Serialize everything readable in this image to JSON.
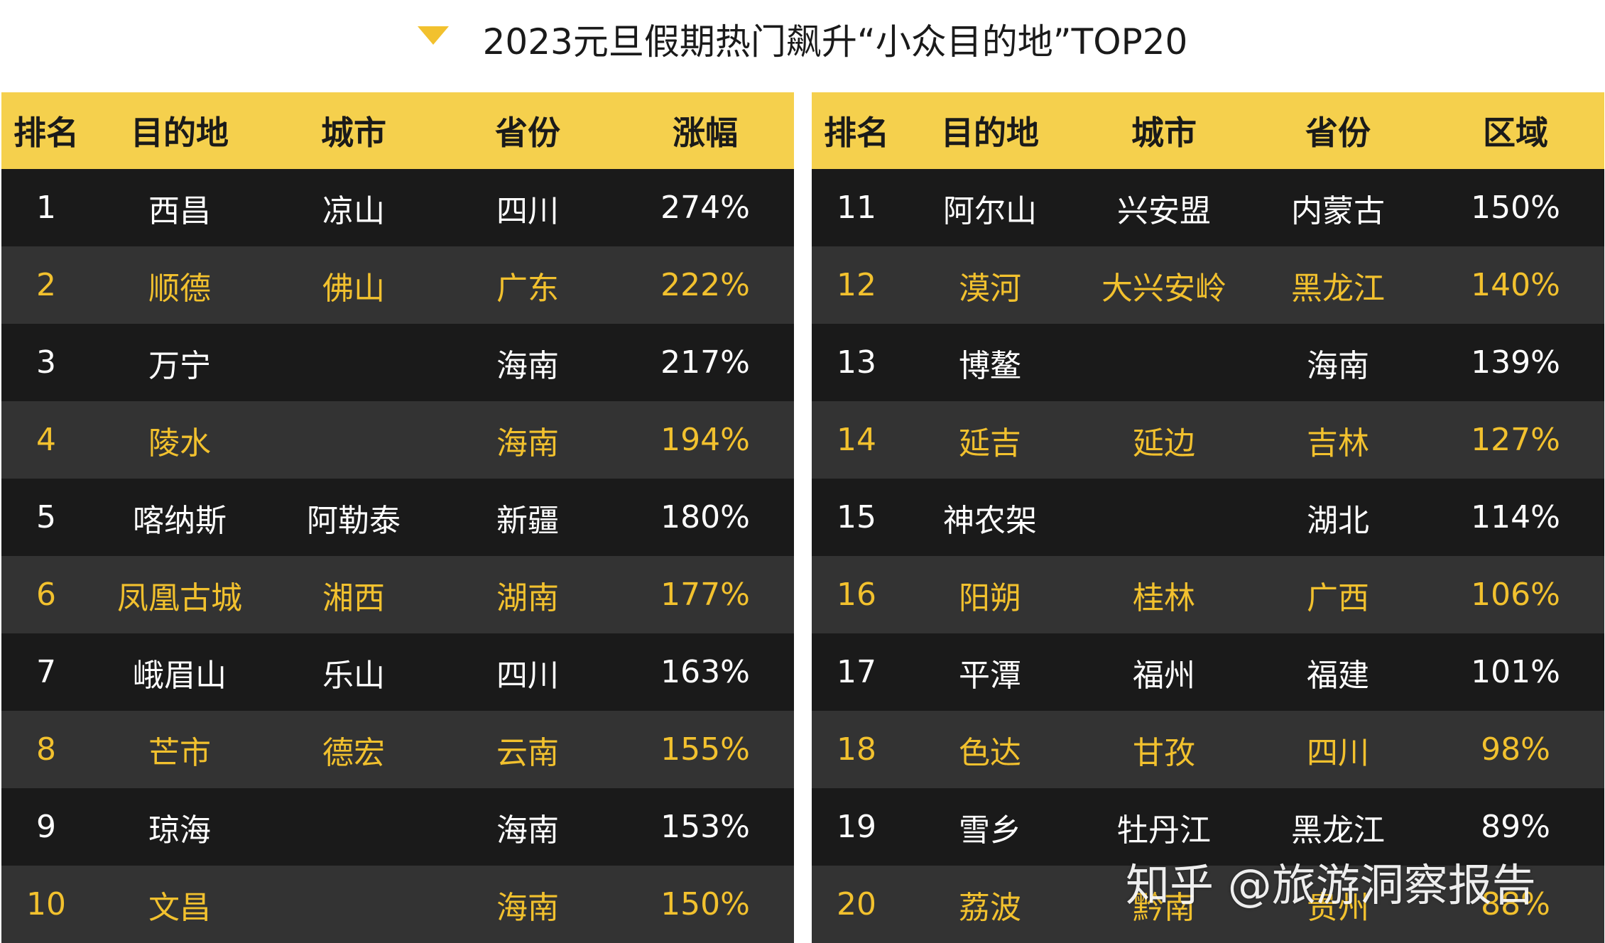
{
  "title": "2023元旦假期热门飙升“小众目的地”TOP20",
  "colors": {
    "accent": "#f5d04d",
    "row_dark": "#1a1a1a",
    "row_alt": "#333333",
    "highlight_text": "#f2c12e"
  },
  "left_table": {
    "headers": [
      "排名",
      "目的地",
      "城市",
      "省份",
      "涨幅"
    ],
    "rows": [
      [
        "1",
        "西昌",
        "凉山",
        "四川",
        "274%"
      ],
      [
        "2",
        "顺德",
        "佛山",
        "广东",
        "222%"
      ],
      [
        "3",
        "万宁",
        "",
        "海南",
        "217%"
      ],
      [
        "4",
        "陵水",
        "",
        "海南",
        "194%"
      ],
      [
        "5",
        "喀纳斯",
        "阿勒泰",
        "新疆",
        "180%"
      ],
      [
        "6",
        "凤凰古城",
        "湘西",
        "湖南",
        "177%"
      ],
      [
        "7",
        "峨眉山",
        "乐山",
        "四川",
        "163%"
      ],
      [
        "8",
        "芒市",
        "德宏",
        "云南",
        "155%"
      ],
      [
        "9",
        "琼海",
        "",
        "海南",
        "153%"
      ],
      [
        "10",
        "文昌",
        "",
        "海南",
        "150%"
      ]
    ]
  },
  "right_table": {
    "headers": [
      "排名",
      "目的地",
      "城市",
      "省份",
      "区域"
    ],
    "rows": [
      [
        "11",
        "阿尔山",
        "兴安盟",
        "内蒙古",
        "150%"
      ],
      [
        "12",
        "漠河",
        "大兴安岭",
        "黑龙江",
        "140%"
      ],
      [
        "13",
        "博鳌",
        "",
        "海南",
        "139%"
      ],
      [
        "14",
        "延吉",
        "延边",
        "吉林",
        "127%"
      ],
      [
        "15",
        "神农架",
        "",
        "湖北",
        "114%"
      ],
      [
        "16",
        "阳朔",
        "桂林",
        "广西",
        "106%"
      ],
      [
        "17",
        "平潭",
        "福州",
        "福建",
        "101%"
      ],
      [
        "18",
        "色达",
        "甘孜",
        "四川",
        "98%"
      ],
      [
        "19",
        "雪乡",
        "牡丹江",
        "黑龙江",
        "89%"
      ],
      [
        "20",
        "荔波",
        "黔南",
        "贵州",
        "88%"
      ]
    ]
  },
  "watermark": "知乎 @旅游洞察报告"
}
